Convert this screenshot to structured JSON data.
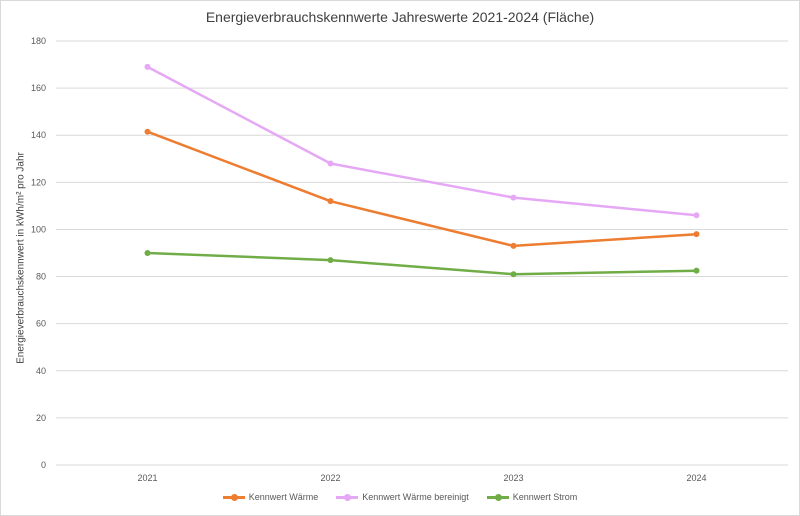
{
  "chart_data": {
    "type": "line",
    "title": "Energieverbrauchskennwerte  Jahreswerte 2021-2024 (Fläche)",
    "ylabel": "Energieverbrauchskennwert  in kWh/m² pro Jahr",
    "xlabel": "",
    "categories": [
      "2021",
      "2022",
      "2023",
      "2024"
    ],
    "ylim": [
      0,
      180
    ],
    "yticks": [
      0,
      20,
      40,
      60,
      80,
      100,
      120,
      140,
      160,
      180
    ],
    "grid": true,
    "legend_position": "bottom",
    "series": [
      {
        "name": "Kennwert Wärme",
        "color": "#ed7d31",
        "values": [
          141.5,
          112,
          93,
          98
        ]
      },
      {
        "name": "Kennwert Wärme bereinigt",
        "color": "#e6a8f5",
        "values": [
          169,
          128,
          113.5,
          106
        ]
      },
      {
        "name": "Kennwert Strom",
        "color": "#70ad47",
        "values": [
          90,
          87,
          81,
          82.5
        ]
      }
    ]
  }
}
